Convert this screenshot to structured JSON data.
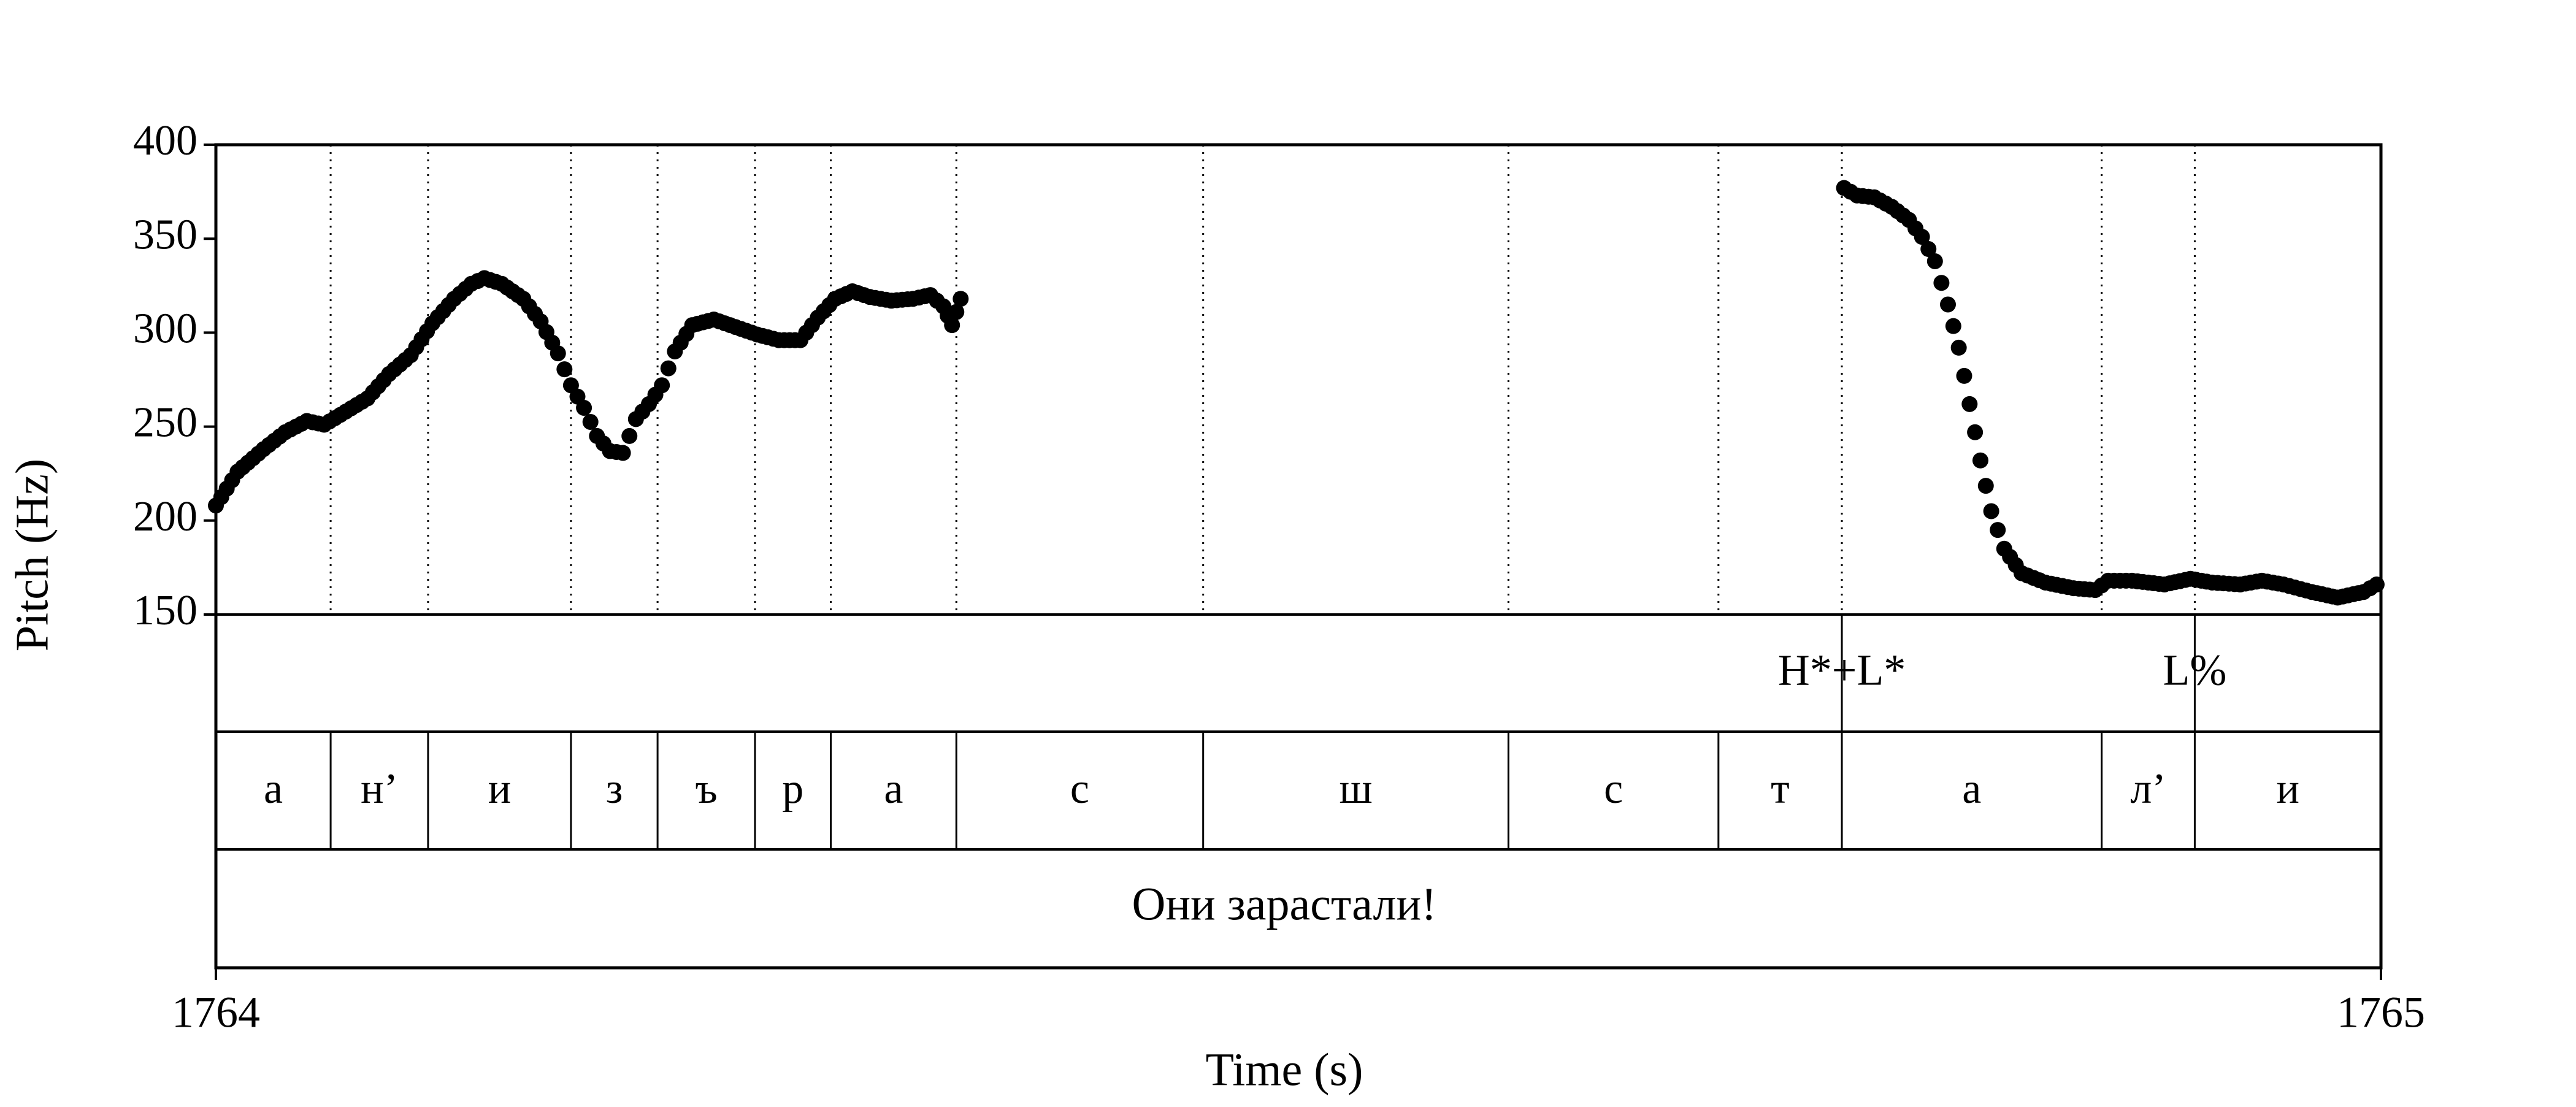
{
  "chart_data": {
    "type": "scatter",
    "xlabel": "Time (s)",
    "ylabel": "Pitch (Hz)",
    "xlim": [
      1764,
      1765
    ],
    "ylim": [
      150,
      400
    ],
    "x_ticks": [
      "1764",
      "1765"
    ],
    "y_ticks": [
      "400",
      "350",
      "300",
      "250",
      "200",
      "150"
    ],
    "colors": {
      "points": "#000000",
      "frame": "#000000"
    },
    "boundaries": [
      1764.053,
      1764.098,
      1764.164,
      1764.204,
      1764.249,
      1764.284,
      1764.342,
      1764.456,
      1764.597,
      1764.694,
      1764.751,
      1764.871,
      1764.914
    ],
    "tone_labels": [
      {
        "time": 1764.751,
        "text": "H*+L*"
      },
      {
        "time": 1764.914,
        "text": "L%"
      }
    ],
    "segments": [
      {
        "start": 1764.0,
        "end": 1764.053,
        "text": "а"
      },
      {
        "start": 1764.053,
        "end": 1764.098,
        "text": "н’"
      },
      {
        "start": 1764.098,
        "end": 1764.164,
        "text": "и"
      },
      {
        "start": 1764.164,
        "end": 1764.204,
        "text": "з"
      },
      {
        "start": 1764.204,
        "end": 1764.249,
        "text": "ъ"
      },
      {
        "start": 1764.249,
        "end": 1764.284,
        "text": "р"
      },
      {
        "start": 1764.284,
        "end": 1764.342,
        "text": "а"
      },
      {
        "start": 1764.342,
        "end": 1764.456,
        "text": "с"
      },
      {
        "start": 1764.456,
        "end": 1764.597,
        "text": "ш"
      },
      {
        "start": 1764.597,
        "end": 1764.694,
        "text": "с"
      },
      {
        "start": 1764.694,
        "end": 1764.751,
        "text": "т"
      },
      {
        "start": 1764.751,
        "end": 1764.871,
        "text": "а"
      },
      {
        "start": 1764.871,
        "end": 1764.914,
        "text": "л’"
      },
      {
        "start": 1764.914,
        "end": 1765.0,
        "text": "и"
      }
    ],
    "utterance": "Они зарастали!",
    "pitch_contour": [
      [
        1764.0,
        208
      ],
      [
        1764.01,
        226
      ],
      [
        1764.022,
        238
      ],
      [
        1764.032,
        247
      ],
      [
        1764.042,
        253
      ],
      [
        1764.05,
        251
      ],
      [
        1764.06,
        258
      ],
      [
        1764.07,
        265
      ],
      [
        1764.08,
        278
      ],
      [
        1764.09,
        288
      ],
      [
        1764.1,
        305
      ],
      [
        1764.11,
        318
      ],
      [
        1764.118,
        326
      ],
      [
        1764.124,
        329
      ],
      [
        1764.132,
        326
      ],
      [
        1764.142,
        318
      ],
      [
        1764.15,
        306
      ],
      [
        1764.158,
        289
      ],
      [
        1764.164,
        272
      ],
      [
        1764.17,
        260
      ],
      [
        1764.176,
        245
      ],
      [
        1764.182,
        237
      ],
      [
        1764.188,
        236
      ],
      [
        1764.194,
        254
      ],
      [
        1764.2,
        262
      ],
      [
        1764.206,
        272
      ],
      [
        1764.212,
        290
      ],
      [
        1764.22,
        304
      ],
      [
        1764.23,
        307
      ],
      [
        1764.24,
        303
      ],
      [
        1764.25,
        299
      ],
      [
        1764.26,
        296
      ],
      [
        1764.27,
        296
      ],
      [
        1764.278,
        308
      ],
      [
        1764.286,
        318
      ],
      [
        1764.294,
        322
      ],
      [
        1764.302,
        319
      ],
      [
        1764.312,
        317
      ],
      [
        1764.322,
        318
      ],
      [
        1764.33,
        320
      ],
      [
        1764.336,
        314
      ],
      [
        1764.34,
        304
      ],
      [
        1764.344,
        318
      ],
      [
        1764.752,
        377
      ],
      [
        1764.758,
        373
      ],
      [
        1764.766,
        372
      ],
      [
        1764.774,
        367
      ],
      [
        1764.782,
        360
      ],
      [
        1764.788,
        351
      ],
      [
        1764.794,
        338
      ],
      [
        1764.8,
        315
      ],
      [
        1764.805,
        292
      ],
      [
        1764.81,
        262
      ],
      [
        1764.815,
        232
      ],
      [
        1764.82,
        205
      ],
      [
        1764.826,
        185
      ],
      [
        1764.834,
        172
      ],
      [
        1764.845,
        167
      ],
      [
        1764.858,
        164
      ],
      [
        1764.868,
        163
      ],
      [
        1764.874,
        168
      ],
      [
        1764.885,
        168
      ],
      [
        1764.9,
        166
      ],
      [
        1764.912,
        169
      ],
      [
        1764.922,
        167
      ],
      [
        1764.935,
        166
      ],
      [
        1764.945,
        168
      ],
      [
        1764.955,
        166
      ],
      [
        1764.968,
        162
      ],
      [
        1764.98,
        159
      ],
      [
        1764.992,
        162
      ],
      [
        1764.998,
        166
      ]
    ]
  }
}
